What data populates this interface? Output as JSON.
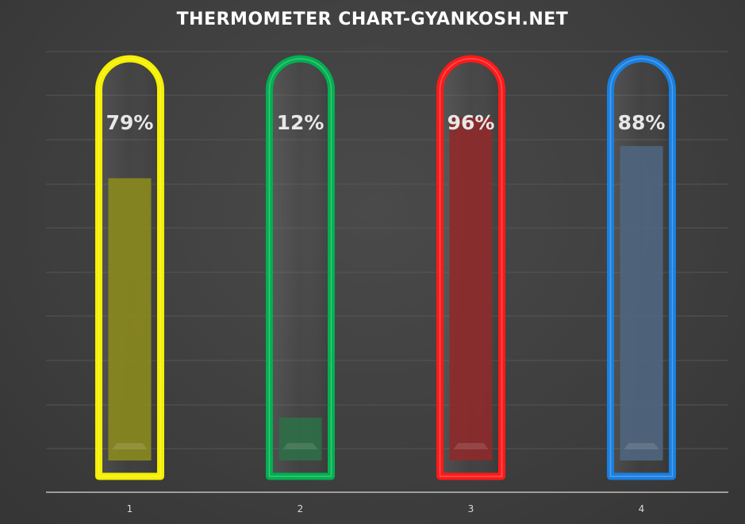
{
  "chart_data": {
    "type": "bar",
    "subtype": "thermometer",
    "title": "THERMOMETER CHART-GYANKOSH.NET",
    "categories": [
      "1",
      "2",
      "3",
      "4"
    ],
    "values": [
      0.79,
      0.12,
      0.96,
      0.88
    ],
    "data_labels": [
      "79%",
      "12%",
      "96%",
      "88%"
    ],
    "ylim": [
      0,
      1
    ],
    "grid": true,
    "legend": "none",
    "colors": {
      "outline": [
        "#f5f000",
        "#00b050",
        "#ff1a1a",
        "#1a7fe0"
      ],
      "fill": [
        "#8b8a1e",
        "#2f6e46",
        "#8e2a2a",
        "#4f6680"
      ],
      "background": "#404040",
      "grid": "#555555",
      "axis": "#bfbfbf"
    }
  }
}
